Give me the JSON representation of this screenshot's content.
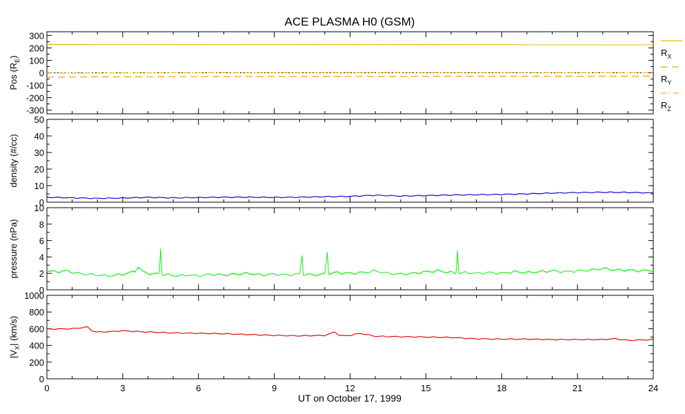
{
  "chart_data": {
    "title": "ACE PLASMA H0 (GSM)",
    "xlabel": "UT on October 17, 1999",
    "x_ticks": [
      "0",
      "3",
      "6",
      "9",
      "12",
      "15",
      "18",
      "21",
      "24"
    ],
    "xlim": [
      0,
      24
    ],
    "panels": [
      {
        "type": "line",
        "ylabel": "Pos (R_E)",
        "ylabel_main": "Pos (R",
        "ylabel_sub": "E",
        "ylabel_end": ")",
        "ylim": [
          -330,
          330
        ],
        "y_ticks": [
          300,
          200,
          100,
          0,
          -100,
          -200,
          -300
        ],
        "y_tick_labels": [
          "300",
          "200",
          "100",
          "0",
          "-100",
          "-200",
          "-300"
        ],
        "series": [
          {
            "name": "R_X",
            "label_main": "R",
            "label_sub": "X",
            "color": "#e6b800",
            "style": "solid",
            "x": [
              0,
              24
            ],
            "y": [
              228,
              225
            ]
          },
          {
            "name": "R_Y",
            "label_main": "R",
            "label_sub": "Y",
            "color": "#f0a000",
            "style": "dashed",
            "x": [
              0,
              2,
              5,
              8,
              12,
              16,
              20,
              24
            ],
            "y": [
              -35,
              -33,
              -31,
              -30,
              -29,
              -28,
              -28,
              -27
            ]
          },
          {
            "name": "R_Z",
            "label_main": "R",
            "label_sub": "Z",
            "color": "#ffb000",
            "style": "dashdot",
            "x": [
              0,
              6,
              12,
              18,
              24
            ],
            "y": [
              -2,
              1,
              3,
              2,
              0
            ]
          }
        ],
        "reference_line": {
          "y": 0,
          "color": "#000000",
          "style": "dotted"
        }
      },
      {
        "type": "line",
        "ylabel": "density (#/cc)",
        "ylim": [
          0,
          50
        ],
        "y_ticks": [
          50,
          40,
          30,
          20,
          10,
          0
        ],
        "y_tick_labels": [
          "50",
          "40",
          "30",
          "20",
          "10",
          "0"
        ],
        "series": [
          {
            "name": "density",
            "color": "#0000cc",
            "x": [
              0,
              1,
              2,
              3,
              4,
              5,
              6,
              7,
              8,
              9,
              10,
              11,
              12,
              13,
              14,
              15,
              16,
              17,
              18,
              19,
              20,
              21,
              22,
              23,
              24
            ],
            "y": [
              3.0,
              2.6,
              2.3,
              2.5,
              2.9,
              2.6,
              2.8,
              3.0,
              3.0,
              2.9,
              3.0,
              3.3,
              3.5,
              4.2,
              3.7,
              4.0,
              4.3,
              4.5,
              4.7,
              5.0,
              5.5,
              5.8,
              6.0,
              5.9,
              5.6
            ]
          }
        ]
      },
      {
        "type": "line",
        "ylabel": "pressure (nPa)",
        "ylim": [
          0,
          10
        ],
        "y_ticks": [
          10,
          8,
          6,
          4,
          2,
          0
        ],
        "y_tick_labels": [
          "10",
          "8",
          "6",
          "4",
          "2",
          "0"
        ],
        "series": [
          {
            "name": "pressure",
            "color": "#22ee22",
            "x": [
              0,
              0.4,
              0.8,
              1.2,
              1.6,
              2.0,
              2.4,
              2.8,
              3.2,
              3.5,
              3.6,
              3.8,
              4.0,
              4.3,
              4.45,
              4.5,
              4.55,
              4.8,
              5.2,
              5.6,
              6.0,
              6.5,
              7.0,
              7.5,
              8.0,
              8.5,
              9.0,
              9.5,
              10.0,
              10.1,
              10.15,
              10.2,
              10.5,
              11.0,
              11.1,
              11.15,
              11.2,
              11.5,
              12.0,
              12.5,
              13.0,
              13.5,
              14.0,
              14.5,
              15.0,
              15.5,
              16.0,
              16.2,
              16.25,
              16.3,
              16.6,
              17.0,
              17.5,
              18.0,
              18.5,
              19.0,
              19.5,
              20.0,
              20.5,
              21.0,
              21.5,
              22.0,
              22.5,
              23.0,
              23.5,
              24.0
            ],
            "y": [
              2.3,
              2.2,
              2.3,
              2.0,
              1.9,
              1.8,
              1.7,
              1.8,
              2.0,
              2.3,
              2.8,
              2.2,
              2.0,
              1.9,
              2.0,
              5.0,
              1.9,
              1.8,
              1.7,
              1.8,
              1.7,
              1.9,
              1.8,
              1.9,
              2.0,
              1.8,
              1.9,
              1.8,
              1.9,
              4.2,
              1.8,
              1.9,
              1.8,
              1.9,
              4.6,
              1.9,
              2.0,
              2.1,
              2.0,
              2.1,
              2.3,
              2.0,
              1.9,
              2.0,
              2.2,
              2.3,
              2.1,
              2.0,
              4.8,
              2.0,
              2.1,
              2.0,
              2.1,
              2.0,
              2.2,
              2.1,
              2.2,
              2.3,
              2.2,
              2.3,
              2.4,
              2.6,
              2.4,
              2.4,
              2.3,
              2.4
            ]
          }
        ]
      },
      {
        "type": "line",
        "ylabel": "|V_X| (km/s)",
        "ylabel_main": "|V",
        "ylabel_sub": "X",
        "ylabel_end": "| (km/s)",
        "ylim": [
          0,
          1000
        ],
        "y_ticks": [
          1000,
          800,
          600,
          400,
          200,
          0
        ],
        "y_tick_labels": [
          "1000",
          "800",
          "600",
          "400",
          "200",
          "0"
        ],
        "series": [
          {
            "name": "|V_X|",
            "color": "#dd0000",
            "x": [
              0,
              1,
              1.6,
              1.8,
              2.0,
              2.5,
              3,
              4,
              5,
              6,
              7,
              8,
              9,
              10,
              11,
              11.4,
              11.6,
              12,
              12.4,
              13,
              14,
              15,
              16,
              17,
              18,
              19,
              20,
              21,
              22,
              22.5,
              23,
              24
            ],
            "y": [
              595,
              600,
              620,
              575,
              560,
              565,
              575,
              560,
              550,
              545,
              540,
              530,
              520,
              515,
              520,
              560,
              515,
              520,
              545,
              510,
              505,
              500,
              495,
              480,
              475,
              475,
              470,
              470,
              470,
              480,
              460,
              470
            ]
          }
        ]
      }
    ]
  }
}
